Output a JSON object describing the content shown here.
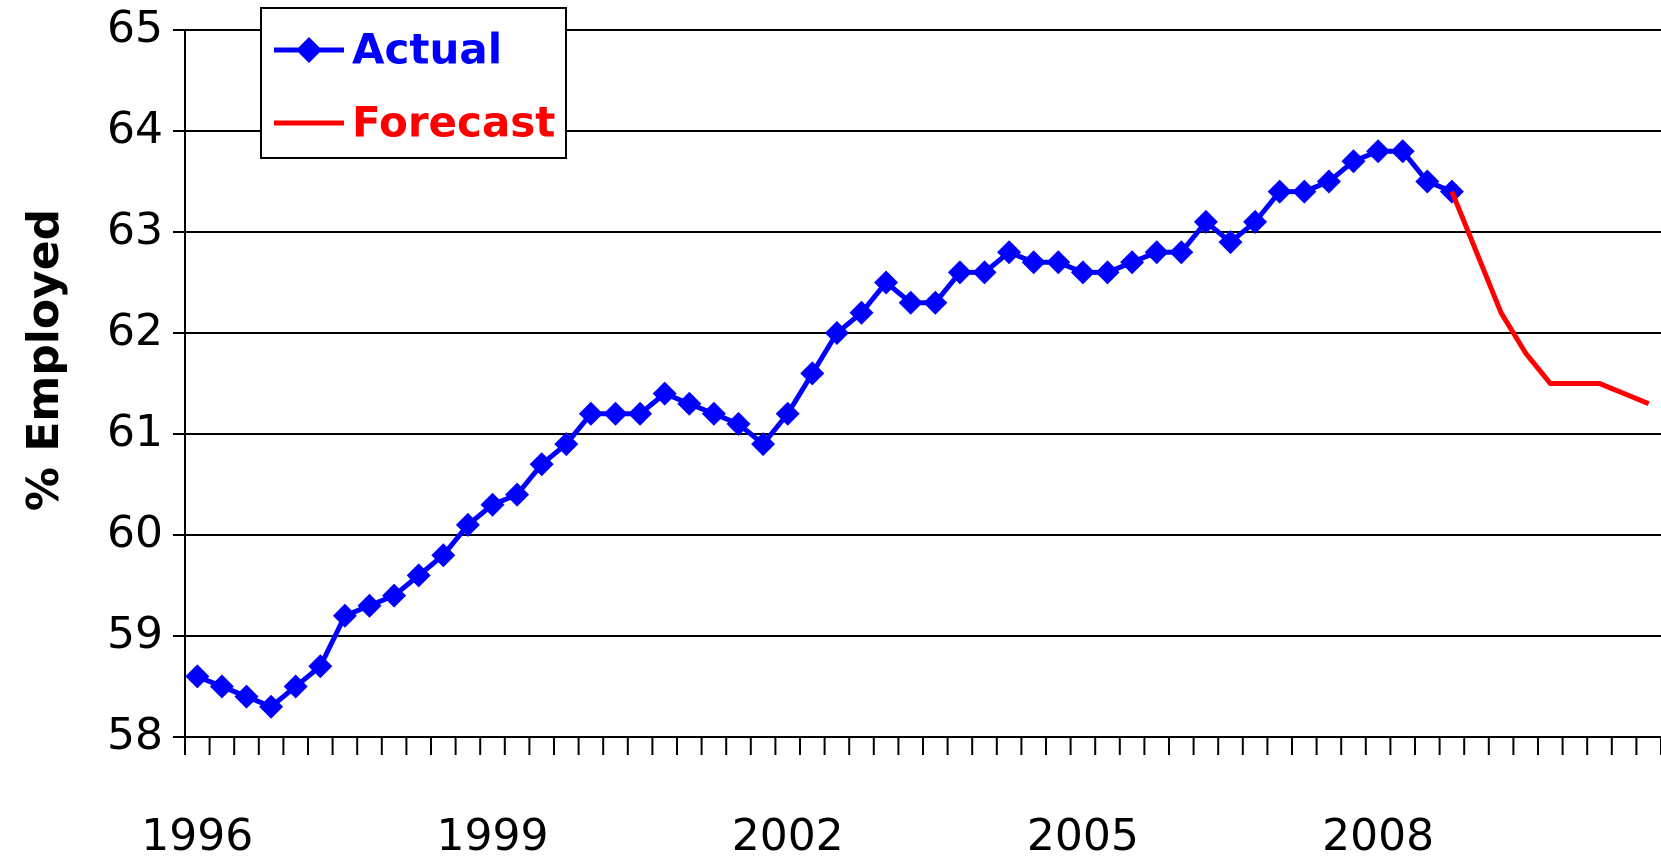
{
  "chart_data": {
    "type": "line",
    "y_label": "% Employed",
    "categories": [
      "1996",
      null,
      null,
      null,
      null,
      null,
      null,
      null,
      null,
      null,
      null,
      null,
      "1999",
      null,
      null,
      null,
      null,
      null,
      null,
      null,
      null,
      null,
      null,
      null,
      "2002",
      null,
      null,
      null,
      null,
      null,
      null,
      null,
      null,
      null,
      null,
      null,
      "2005",
      null,
      null,
      null,
      null,
      null,
      null,
      null,
      null,
      null,
      null,
      null,
      "2008",
      null,
      null,
      null,
      null,
      null,
      null,
      null,
      null,
      null,
      null,
      null
    ],
    "series": [
      {
        "name": "Actual",
        "color": "#0000ff",
        "marker": "diamond",
        "values": [
          58.6,
          58.5,
          58.4,
          58.3,
          58.5,
          58.7,
          59.2,
          59.3,
          59.4,
          59.6,
          59.8,
          60.1,
          60.3,
          60.4,
          60.7,
          60.9,
          61.2,
          61.2,
          61.2,
          61.4,
          61.3,
          61.2,
          61.1,
          60.9,
          61.2,
          61.6,
          62.0,
          62.2,
          62.5,
          62.3,
          62.3,
          62.6,
          62.6,
          62.8,
          62.7,
          62.7,
          62.6,
          62.6,
          62.7,
          62.8,
          62.8,
          63.1,
          62.9,
          63.1,
          63.4,
          63.4,
          63.5,
          63.7,
          63.8,
          63.8,
          63.5,
          63.4,
          null,
          null,
          null,
          null,
          null,
          null,
          null,
          null
        ]
      },
      {
        "name": "Forecast",
        "color": "#ff0000",
        "marker": "none",
        "values": [
          null,
          null,
          null,
          null,
          null,
          null,
          null,
          null,
          null,
          null,
          null,
          null,
          null,
          null,
          null,
          null,
          null,
          null,
          null,
          null,
          null,
          null,
          null,
          null,
          null,
          null,
          null,
          null,
          null,
          null,
          null,
          null,
          null,
          null,
          null,
          null,
          null,
          null,
          null,
          null,
          null,
          null,
          null,
          null,
          null,
          null,
          null,
          null,
          null,
          null,
          null,
          63.4,
          62.8,
          62.2,
          61.8,
          61.5,
          61.5,
          61.5,
          61.4,
          61.3
        ]
      }
    ],
    "ylim": [
      58,
      65
    ],
    "yticks": [
      58,
      59,
      60,
      61,
      62,
      63,
      64,
      65
    ],
    "grid": true,
    "legend": "upper left"
  }
}
